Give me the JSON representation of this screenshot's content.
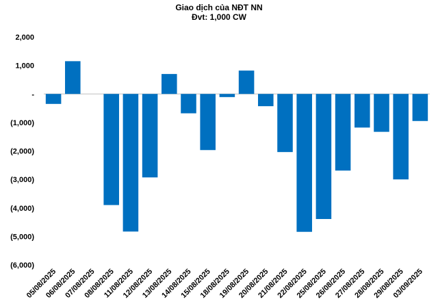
{
  "chart_data": {
    "type": "bar",
    "title": "Giao dịch của NĐT NN",
    "subtitle": "Đvt: 1,000 CW",
    "xlabel": "",
    "ylabel": "",
    "ylim": [
      -6000,
      2000
    ],
    "yticks": [
      2000,
      1000,
      0,
      -1000,
      -2000,
      -3000,
      -4000,
      -5000,
      -6000
    ],
    "ytick_labels": [
      "2,000",
      "1,000",
      "-",
      "(1,000)",
      "(2,000)",
      "(3,000)",
      "(4,000)",
      "(5,000)",
      "(6,000)"
    ],
    "grid": false,
    "bar_color": "#0070C0",
    "categories": [
      "05/08/2025",
      "06/08/2025",
      "07/08/2025",
      "08/08/2025",
      "11/08/2025",
      "12/08/2025",
      "13/08/2025",
      "14/08/2025",
      "15/08/2025",
      "18/08/2025",
      "19/08/2025",
      "20/08/2025",
      "21/08/2025",
      "22/08/2025",
      "25/08/2025",
      "26/08/2025",
      "27/08/2025",
      "28/08/2025",
      "29/08/2025",
      "03/09/2025"
    ],
    "values": [
      -350,
      1150,
      0,
      -3900,
      -4830,
      -2930,
      700,
      -680,
      -1970,
      -110,
      820,
      -430,
      -2040,
      -4840,
      -4390,
      -2690,
      -1180,
      -1330,
      -3000,
      -950
    ]
  }
}
